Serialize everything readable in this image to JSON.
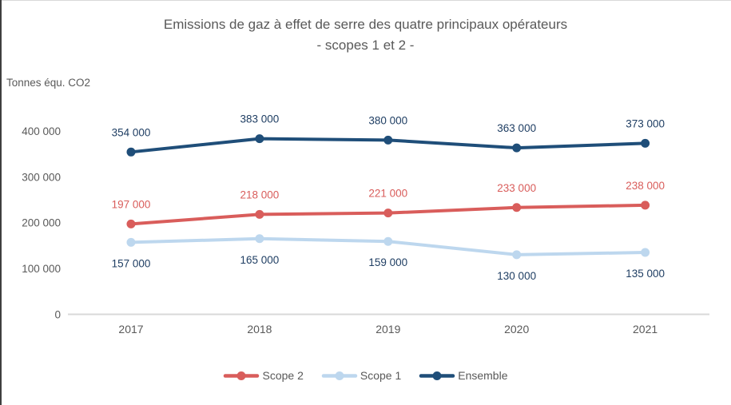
{
  "title": {
    "line1": "Emissions de gaz à effet de serre des quatre principaux opérateurs",
    "line2": "- scopes 1 et 2 -"
  },
  "axis_unit_label": "Tonnes équ. CO2",
  "colors": {
    "scope2": "#d95d5b",
    "scope1": "#bdd7ee",
    "ensemble": "#1f4e79",
    "navy_label": "#1f3e63",
    "gray_text": "#595959",
    "axis_line": "#d9d9d9"
  },
  "chart_data": {
    "type": "line",
    "title": "Emissions de gaz à effet de serre des quatre principaux opérateurs - scopes 1 et 2 -",
    "ylabel": "Tonnes équ. CO2",
    "categories": [
      "2017",
      "2018",
      "2019",
      "2020",
      "2021"
    ],
    "series": [
      {
        "name": "Scope 2",
        "color": "#d95d5b",
        "label_color": "#d95d5b",
        "label_position": "above",
        "values": [
          197000,
          218000,
          221000,
          233000,
          238000
        ],
        "labels": [
          "197 000",
          "218 000",
          "221 000",
          "233 000",
          "238 000"
        ]
      },
      {
        "name": "Scope 1",
        "color": "#bdd7ee",
        "label_color": "#1f3e63",
        "label_position": "below",
        "values": [
          157000,
          165000,
          159000,
          130000,
          135000
        ],
        "labels": [
          "157 000",
          "165 000",
          "159 000",
          "130 000",
          "135 000"
        ]
      },
      {
        "name": "Ensemble",
        "color": "#1f4e79",
        "label_color": "#1f3e63",
        "label_position": "above",
        "values": [
          354000,
          383000,
          380000,
          363000,
          373000
        ],
        "labels": [
          "354 000",
          "383 000",
          "380 000",
          "363 000",
          "373 000"
        ]
      }
    ],
    "y_ticks": [
      {
        "value": 0,
        "label": "0"
      },
      {
        "value": 100000,
        "label": "100 000"
      },
      {
        "value": 200000,
        "label": "200 000"
      },
      {
        "value": 300000,
        "label": "300 000"
      },
      {
        "value": 400000,
        "label": "400 000"
      }
    ],
    "ylim": [
      0,
      440000
    ],
    "grid": false,
    "legend_position": "bottom"
  }
}
